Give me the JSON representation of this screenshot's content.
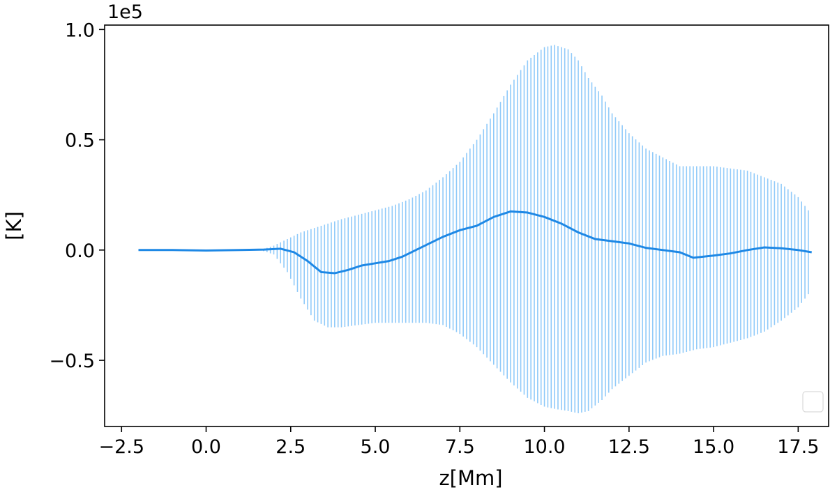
{
  "chart_data": {
    "type": "line",
    "xlabel": "z[Mm]",
    "ylabel": "[K]",
    "y_offset_label": "1e5",
    "xlim": [
      -3.0,
      18.4
    ],
    "ylim": [
      -0.8,
      1.02
    ],
    "x_ticks": [
      -2.5,
      0.0,
      2.5,
      5.0,
      7.5,
      10.0,
      12.5,
      15.0,
      17.5
    ],
    "x_tick_labels": [
      "−2.5",
      "0.0",
      "2.5",
      "5.0",
      "7.5",
      "10.0",
      "12.5",
      "15.0",
      "17.5"
    ],
    "y_ticks": [
      -0.5,
      0.0,
      0.5,
      1.0
    ],
    "y_tick_labels": [
      "−0.5",
      "0.0",
      "0.5",
      "1.0"
    ],
    "grid": false,
    "legend": {
      "placement": "lower right",
      "entries": []
    },
    "series": [
      {
        "kind": "line",
        "color": "#1e88e5",
        "x": [
          -2.0,
          -1.0,
          0.0,
          1.0,
          1.7,
          2.2,
          2.6,
          3.0,
          3.4,
          3.8,
          4.2,
          4.6,
          5.0,
          5.4,
          5.8,
          6.2,
          6.6,
          7.0,
          7.5,
          8.0,
          8.5,
          9.0,
          9.5,
          10.0,
          10.5,
          11.0,
          11.5,
          12.0,
          12.5,
          13.0,
          13.5,
          14.0,
          14.4,
          15.0,
          15.5,
          16.0,
          16.5,
          17.0,
          17.5,
          17.9
        ],
        "y": [
          0.0,
          0.0,
          -0.002,
          0.0,
          0.002,
          0.006,
          -0.01,
          -0.05,
          -0.1,
          -0.105,
          -0.09,
          -0.07,
          -0.06,
          -0.05,
          -0.03,
          0.0,
          0.03,
          0.06,
          0.09,
          0.11,
          0.15,
          0.175,
          0.17,
          0.15,
          0.12,
          0.08,
          0.05,
          0.04,
          0.03,
          0.01,
          0.0,
          -0.01,
          -0.035,
          -0.025,
          -0.015,
          0.0,
          0.012,
          0.008,
          0.0,
          -0.01
        ]
      },
      {
        "kind": "errorbar-band",
        "color": "#90caf9",
        "x": [
          1.6,
          2.0,
          2.4,
          2.8,
          3.2,
          3.6,
          4.0,
          4.5,
          5.0,
          5.5,
          6.0,
          6.5,
          7.0,
          7.5,
          8.0,
          8.5,
          9.0,
          9.5,
          10.0,
          10.3,
          10.7,
          11.0,
          11.3,
          11.7,
          12.0,
          12.5,
          13.0,
          13.5,
          14.0,
          14.5,
          15.0,
          15.5,
          16.0,
          16.5,
          17.0,
          17.5,
          17.8
        ],
        "upper": [
          0.0,
          0.02,
          0.05,
          0.08,
          0.1,
          0.12,
          0.14,
          0.16,
          0.18,
          0.2,
          0.23,
          0.27,
          0.33,
          0.4,
          0.5,
          0.62,
          0.75,
          0.86,
          0.92,
          0.93,
          0.91,
          0.86,
          0.78,
          0.7,
          0.62,
          0.53,
          0.46,
          0.42,
          0.38,
          0.38,
          0.38,
          0.37,
          0.36,
          0.33,
          0.3,
          0.24,
          0.18
        ],
        "lower": [
          0.0,
          -0.02,
          -0.1,
          -0.22,
          -0.32,
          -0.35,
          -0.35,
          -0.34,
          -0.33,
          -0.33,
          -0.33,
          -0.33,
          -0.34,
          -0.38,
          -0.44,
          -0.52,
          -0.6,
          -0.67,
          -0.71,
          -0.72,
          -0.73,
          -0.74,
          -0.73,
          -0.68,
          -0.63,
          -0.57,
          -0.51,
          -0.48,
          -0.47,
          -0.45,
          -0.44,
          -0.42,
          -0.4,
          -0.37,
          -0.32,
          -0.26,
          -0.2
        ]
      }
    ]
  }
}
